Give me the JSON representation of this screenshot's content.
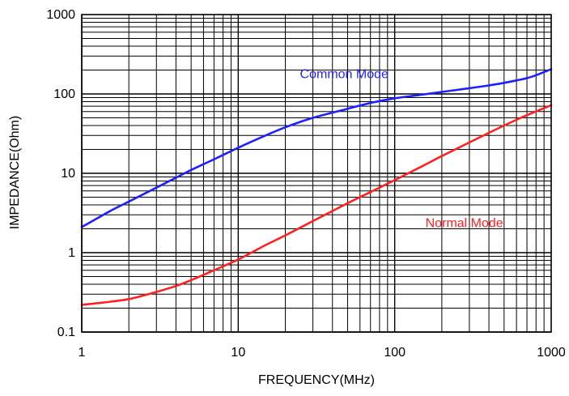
{
  "chart_data": {
    "type": "line",
    "title": "",
    "xlabel": "FREQUENCY(MHz)",
    "ylabel": "IMPEDANCE(Ohm)",
    "x_scale": "log",
    "y_scale": "log",
    "xlim": [
      1,
      1000
    ],
    "ylim": [
      0.1,
      1000
    ],
    "grid": true,
    "x_ticks": [
      {
        "value": 1,
        "label": "1"
      },
      {
        "value": 10,
        "label": "10"
      },
      {
        "value": 100,
        "label": "100"
      },
      {
        "value": 1000,
        "label": "1000"
      }
    ],
    "y_ticks": [
      {
        "value": 0.1,
        "label": "0.1"
      },
      {
        "value": 1,
        "label": "1"
      },
      {
        "value": 10,
        "label": "10"
      },
      {
        "value": 100,
        "label": "100"
      },
      {
        "value": 1000,
        "label": "1000"
      }
    ],
    "series": [
      {
        "name": "Common Mode",
        "color": "#1f1fff",
        "points": [
          [
            1,
            2.1
          ],
          [
            1.5,
            3.3
          ],
          [
            2,
            4.4
          ],
          [
            3,
            6.6
          ],
          [
            4,
            8.8
          ],
          [
            5,
            11
          ],
          [
            7,
            15
          ],
          [
            10,
            21
          ],
          [
            15,
            30
          ],
          [
            20,
            38
          ],
          [
            30,
            50
          ],
          [
            50,
            65
          ],
          [
            70,
            77
          ],
          [
            100,
            88
          ],
          [
            150,
            98
          ],
          [
            200,
            106
          ],
          [
            300,
            118
          ],
          [
            400,
            128
          ],
          [
            500,
            138
          ],
          [
            600,
            148
          ],
          [
            700,
            158
          ],
          [
            800,
            172
          ],
          [
            1000,
            205
          ]
        ]
      },
      {
        "name": "Normal Mode",
        "color": "#ff2020",
        "points": [
          [
            1,
            0.22
          ],
          [
            1.5,
            0.24
          ],
          [
            2,
            0.26
          ],
          [
            2.5,
            0.29
          ],
          [
            3,
            0.32
          ],
          [
            4,
            0.38
          ],
          [
            5,
            0.45
          ],
          [
            7,
            0.6
          ],
          [
            10,
            0.82
          ],
          [
            15,
            1.25
          ],
          [
            20,
            1.65
          ],
          [
            30,
            2.5
          ],
          [
            50,
            4.2
          ],
          [
            70,
            5.8
          ],
          [
            100,
            8.2
          ],
          [
            150,
            12.3
          ],
          [
            200,
            16.5
          ],
          [
            300,
            24.5
          ],
          [
            500,
            40
          ],
          [
            700,
            54
          ],
          [
            1000,
            72
          ]
        ]
      }
    ]
  }
}
